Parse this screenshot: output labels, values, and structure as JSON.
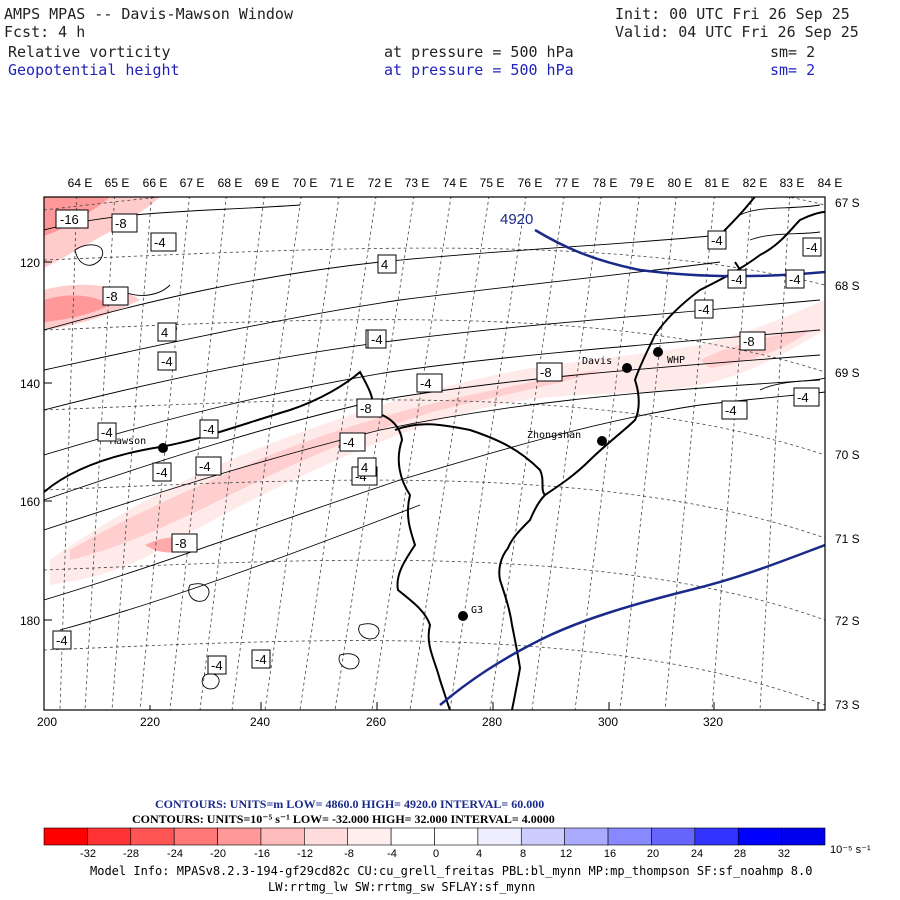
{
  "header": {
    "title": "AMPS MPAS -- Davis-Mawson Window",
    "init": "Init: 00 UTC Fri 26 Sep 25",
    "forecast": "Fcst:     4 h",
    "valid": "Valid: 04 UTC Fri 26 Sep 25",
    "field1": {
      "name": "Relative vorticity",
      "level": "at pressure =  500 hPa",
      "smooth": "sm= 2"
    },
    "field2": {
      "name": "Geopotential height",
      "level": "at pressure =  500 hPa",
      "smooth": "sm= 2"
    }
  },
  "map": {
    "lon_labels": [
      "64 E",
      "65 E",
      "66 E",
      "67 E",
      "68 E",
      "69 E",
      "70 E",
      "71 E",
      "72 E",
      "73 E",
      "74 E",
      "75 E",
      "76 E",
      "77 E",
      "78 E",
      "79 E",
      "80 E",
      "81 E",
      "82 E",
      "83 E",
      "84 E"
    ],
    "lat_labels": [
      "67 S",
      "68 S",
      "69 S",
      "70 S",
      "71 S",
      "72 S",
      "73 S"
    ],
    "y_ticks": [
      "120",
      "140",
      "160",
      "180"
    ],
    "x_ticks": [
      "200",
      "220",
      "240",
      "260",
      "280",
      "300",
      "320"
    ],
    "stations": [
      {
        "name": "Mawson"
      },
      {
        "name": "Davis"
      },
      {
        "name": "WHP"
      },
      {
        "name": "Zhongshan"
      },
      {
        "name": "G3"
      }
    ],
    "height_contour_label": "4920",
    "vorticity_labels": [
      "-16",
      "-8",
      "-4",
      "-8",
      "-4",
      "4",
      "-4",
      "-4",
      "-8",
      "-4",
      "-4",
      "-8",
      "-4",
      "-4",
      "-4",
      "-8",
      "-4",
      "-4",
      "-4",
      "-4",
      "-4",
      "-8",
      "-4",
      "-4",
      "-4",
      "-4",
      "-4",
      "-4",
      "4",
      "4",
      "-4",
      "-4",
      "-4",
      "-4"
    ]
  },
  "legend": {
    "line1": "CONTOURS:  UNITS=m  LOW=  4860.0        HIGH=  4920.0        INTERVAL=   60.000",
    "line2": "CONTOURS:  UNITS=10⁻⁵ s⁻¹   LOW=  -32.000         HIGH=  32.000       INTERVAL=    4.0000",
    "colorbar_labels": [
      "-32",
      "-28",
      "-24",
      "-20",
      "-16",
      "-12",
      "-8",
      "-4",
      "0",
      "4",
      "8",
      "12",
      "16",
      "20",
      "24",
      "28",
      "32"
    ],
    "colorbar_units": "10⁻⁵ s⁻¹",
    "colors": [
      "#ff0000",
      "#ff3333",
      "#ff5555",
      "#ff7777",
      "#ff9999",
      "#ffbbbb",
      "#ffdddd",
      "#ffeeee",
      "#ffffff",
      "#ffffff",
      "#eeeeff",
      "#ccccff",
      "#aaaaff",
      "#8888ff",
      "#6666ff",
      "#3333ff",
      "#0000ff",
      "#0000ee"
    ]
  },
  "footer": {
    "line1": "Model Info: MPASv8.2.3-194-gf29cd82c CU:cu_grell_freitas PBL:bl_mynn MP:mp_thompson SF:sf_noahmp 8.0",
    "line2": "LW:rrtmg_lw SW:rrtmg_sw SFLAY:sf_mynn"
  }
}
